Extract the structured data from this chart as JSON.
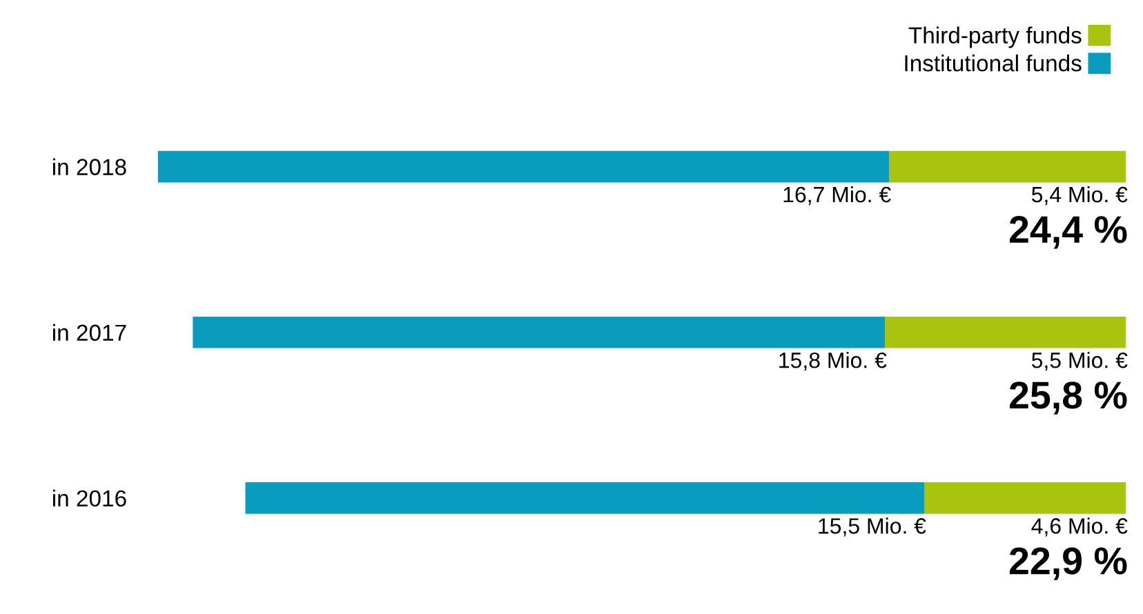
{
  "chart_data": {
    "type": "bar",
    "orientation": "horizontal",
    "stacked": true,
    "categories": [
      "in 2018",
      "in 2017",
      "in 2016"
    ],
    "series": [
      {
        "name": "Third-party funds",
        "color": "#a9c40f",
        "values": [
          5.4,
          5.5,
          4.6
        ],
        "value_labels": [
          "5,4 Mio. €",
          "5,5 Mio. €",
          "4,6 Mio. €"
        ]
      },
      {
        "name": "Institutional funds",
        "color": "#0a9cbf",
        "values": [
          16.7,
          15.8,
          15.5
        ],
        "value_labels": [
          "16,7 Mio. €",
          "15,8 Mio. €",
          "15,5 Mio. €"
        ]
      }
    ],
    "tick_labels": "y",
    "legend": "top right",
    "grid": false,
    "annotations": [
      "24,4 %",
      "25,8 %",
      "22,9 %"
    ]
  }
}
